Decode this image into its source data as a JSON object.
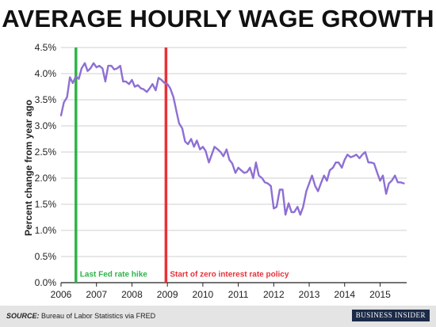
{
  "title": "AVERAGE HOURLY WAGE GROWTH",
  "footer": {
    "source_label": "SOURCE:",
    "source_text": "Bureau of Labor Statistics via FRED",
    "brand": "BUSINESS INSIDER"
  },
  "colors": {
    "line": "#8e6fd4",
    "fed_hike": "#2fb34a",
    "zero_rate": "#e8323a",
    "grid": "#cfcfcf"
  },
  "chart_data": {
    "type": "line",
    "title": "AVERAGE HOURLY WAGE GROWTH",
    "xlabel": "",
    "ylabel": "Percent change from year ago",
    "xlim": [
      2006.0,
      2015.75
    ],
    "ylim": [
      0,
      4.5
    ],
    "x_ticks": [
      {
        "value": 2006,
        "label": "2006"
      },
      {
        "value": 2007,
        "label": "2007"
      },
      {
        "value": 2008,
        "label": "2008"
      },
      {
        "value": 2009,
        "label": "2009"
      },
      {
        "value": 2010,
        "label": "2010"
      },
      {
        "value": 2011,
        "label": "2011"
      },
      {
        "value": 2012,
        "label": "2012"
      },
      {
        "value": 2013,
        "label": "2013"
      },
      {
        "value": 2014,
        "label": "2014"
      },
      {
        "value": 2015,
        "label": "2015"
      }
    ],
    "y_ticks": [
      {
        "value": 0,
        "label": "0.0%"
      },
      {
        "value": 0.5,
        "label": "0.5%"
      },
      {
        "value": 1.0,
        "label": "1.0%"
      },
      {
        "value": 1.5,
        "label": "1.5%"
      },
      {
        "value": 2.0,
        "label": "2.0%"
      },
      {
        "value": 2.5,
        "label": "2.5%"
      },
      {
        "value": 3.0,
        "label": "3.0%"
      },
      {
        "value": 3.5,
        "label": "3.5%"
      },
      {
        "value": 4.0,
        "label": "4.0%"
      },
      {
        "value": 4.5,
        "label": "4.5%"
      }
    ],
    "grid": true,
    "annotations": [
      {
        "x": 2006.42,
        "label": "Last Fed rate hike",
        "color": "#2fb34a"
      },
      {
        "x": 2008.96,
        "label": "Start of zero interest rate policy",
        "color": "#e8323a"
      }
    ],
    "series": [
      {
        "x": [
          2006.0,
          2006.08,
          2006.17,
          2006.25,
          2006.33,
          2006.42,
          2006.5,
          2006.58,
          2006.67,
          2006.75,
          2006.83,
          2006.92,
          2007.0,
          2007.08,
          2007.17,
          2007.25,
          2007.33,
          2007.42,
          2007.5,
          2007.58,
          2007.67,
          2007.75,
          2007.83,
          2007.92,
          2008.0,
          2008.08,
          2008.17,
          2008.25,
          2008.33,
          2008.42,
          2008.5,
          2008.58,
          2008.67,
          2008.75,
          2008.83,
          2008.92,
          2009.0,
          2009.08,
          2009.17,
          2009.25,
          2009.33,
          2009.42,
          2009.5,
          2009.58,
          2009.67,
          2009.75,
          2009.83,
          2009.92,
          2010.0,
          2010.08,
          2010.17,
          2010.25,
          2010.33,
          2010.42,
          2010.5,
          2010.58,
          2010.67,
          2010.75,
          2010.83,
          2010.92,
          2011.0,
          2011.08,
          2011.17,
          2011.25,
          2011.33,
          2011.42,
          2011.5,
          2011.58,
          2011.67,
          2011.75,
          2011.83,
          2011.92,
          2012.0,
          2012.08,
          2012.17,
          2012.25,
          2012.33,
          2012.42,
          2012.5,
          2012.58,
          2012.67,
          2012.75,
          2012.83,
          2012.92,
          2013.0,
          2013.08,
          2013.17,
          2013.25,
          2013.33,
          2013.42,
          2013.5,
          2013.58,
          2013.67,
          2013.75,
          2013.83,
          2013.92,
          2014.0,
          2014.08,
          2014.17,
          2014.25,
          2014.33,
          2014.42,
          2014.5,
          2014.58,
          2014.67,
          2014.75,
          2014.83,
          2014.92,
          2015.0,
          2015.08,
          2015.17,
          2015.25,
          2015.33,
          2015.42,
          2015.5,
          2015.58,
          2015.67
        ],
        "y": [
          3.2,
          3.45,
          3.55,
          3.93,
          3.82,
          3.95,
          3.9,
          4.1,
          4.2,
          4.05,
          4.1,
          4.2,
          4.12,
          4.15,
          4.1,
          3.85,
          4.15,
          4.15,
          4.08,
          4.1,
          4.15,
          3.85,
          3.85,
          3.8,
          3.88,
          3.75,
          3.78,
          3.72,
          3.7,
          3.65,
          3.72,
          3.8,
          3.68,
          3.92,
          3.88,
          3.82,
          3.8,
          3.72,
          3.55,
          3.3,
          3.05,
          2.95,
          2.7,
          2.65,
          2.75,
          2.6,
          2.72,
          2.55,
          2.6,
          2.52,
          2.3,
          2.45,
          2.6,
          2.55,
          2.5,
          2.42,
          2.55,
          2.35,
          2.28,
          2.1,
          2.2,
          2.15,
          2.1,
          2.12,
          2.2,
          2.0,
          2.3,
          2.05,
          2.0,
          1.92,
          1.9,
          1.85,
          1.42,
          1.45,
          1.78,
          1.78,
          1.3,
          1.52,
          1.35,
          1.35,
          1.45,
          1.3,
          1.45,
          1.75,
          1.9,
          2.05,
          1.85,
          1.75,
          1.9,
          2.05,
          1.95,
          2.15,
          2.2,
          2.3,
          2.3,
          2.2,
          2.35,
          2.45,
          2.4,
          2.42,
          2.45,
          2.38,
          2.45,
          2.5,
          2.3,
          2.3,
          2.28,
          2.1,
          1.95,
          2.05,
          1.7,
          1.9,
          1.95,
          2.05,
          1.92,
          1.92,
          1.9
        ]
      }
    ]
  }
}
